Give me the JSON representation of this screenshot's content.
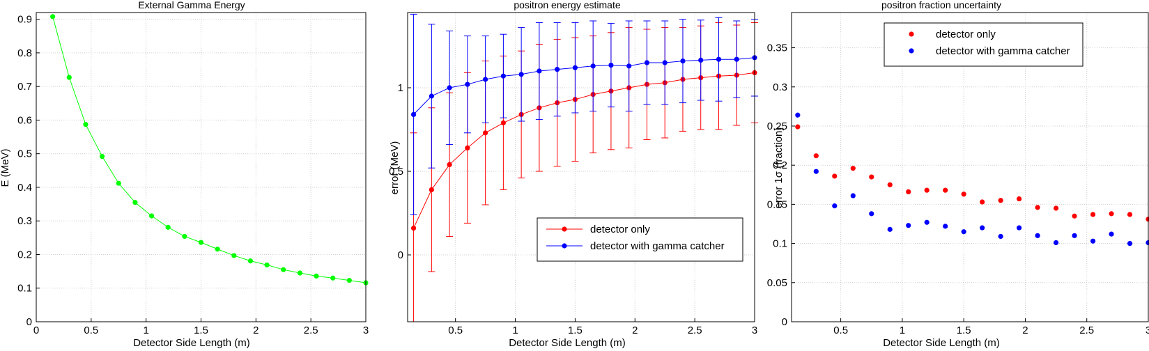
{
  "chart_data": [
    {
      "type": "line",
      "title": "External Gamma Energy",
      "xlabel": "Detector Side Length (m)",
      "ylabel": "E (MeV)",
      "xlim": [
        0,
        3
      ],
      "ylim": [
        0,
        0.92
      ],
      "grid": true,
      "x": [
        0.15,
        0.3,
        0.45,
        0.6,
        0.75,
        0.9,
        1.05,
        1.2,
        1.35,
        1.5,
        1.65,
        1.8,
        1.95,
        2.1,
        2.25,
        2.4,
        2.55,
        2.7,
        2.85,
        3.0
      ],
      "series": [
        {
          "color": "#00ff00",
          "values": [
            0.908,
            0.727,
            0.587,
            0.492,
            0.412,
            0.355,
            0.315,
            0.281,
            0.254,
            0.236,
            0.216,
            0.197,
            0.181,
            0.169,
            0.155,
            0.145,
            0.136,
            0.13,
            0.123,
            0.116
          ]
        }
      ],
      "xticks": [
        "0",
        "0.5",
        "1",
        "1.5",
        "2",
        "2.5",
        "3"
      ],
      "yticks": [
        "0",
        "0.1",
        "0.2",
        "0.3",
        "0.4",
        "0.5",
        "0.6",
        "0.7",
        "0.8",
        "0.9"
      ]
    },
    {
      "type": "line",
      "title": "positron energy estimate",
      "xlabel": "Detector Side Length (m)",
      "ylabel": "error (MeV)",
      "xlim": [
        0.1,
        3.0
      ],
      "ylim": [
        -0.4,
        1.45
      ],
      "grid": true,
      "legend": "bottom-right",
      "x": [
        0.15,
        0.3,
        0.45,
        0.6,
        0.75,
        0.9,
        1.05,
        1.2,
        1.35,
        1.5,
        1.65,
        1.8,
        1.95,
        2.1,
        2.25,
        2.4,
        2.55,
        2.7,
        2.85,
        3.0
      ],
      "series": [
        {
          "name": "detector only",
          "color": "#ff0000",
          "values": [
            0.16,
            0.39,
            0.54,
            0.64,
            0.73,
            0.79,
            0.84,
            0.88,
            0.91,
            0.93,
            0.96,
            0.98,
            1.0,
            1.02,
            1.03,
            1.05,
            1.06,
            1.07,
            1.075,
            1.09
          ],
          "errors": [
            0.57,
            0.49,
            0.43,
            0.45,
            0.43,
            0.4,
            0.38,
            0.38,
            0.38,
            0.37,
            0.35,
            0.35,
            0.36,
            0.33,
            0.33,
            0.31,
            0.31,
            0.32,
            0.3,
            0.3
          ]
        },
        {
          "name": "detector with gamma catcher",
          "color": "#0000ff",
          "values": [
            0.84,
            0.95,
            1.0,
            1.02,
            1.05,
            1.07,
            1.08,
            1.1,
            1.11,
            1.12,
            1.13,
            1.135,
            1.13,
            1.15,
            1.15,
            1.16,
            1.165,
            1.17,
            1.17,
            1.18
          ],
          "errors": [
            0.6,
            0.43,
            0.34,
            0.29,
            0.26,
            0.25,
            0.28,
            0.29,
            0.28,
            0.27,
            0.27,
            0.25,
            0.27,
            0.25,
            0.25,
            0.25,
            0.24,
            0.25,
            0.23,
            0.23
          ]
        }
      ],
      "xticks": [
        "0.5",
        "1",
        "1.5",
        "2",
        "2.5",
        "3"
      ],
      "yticks": [
        "0",
        "0.5",
        "1"
      ]
    },
    {
      "type": "scatter",
      "title": "positron fraction uncertainty",
      "xlabel": "Detector Side Length (m)",
      "ylabel": "error 1σ (fraction)",
      "xlim": [
        0.1,
        3.0
      ],
      "ylim": [
        0,
        0.395
      ],
      "grid": true,
      "legend": "top-right",
      "x": [
        0.15,
        0.3,
        0.45,
        0.6,
        0.75,
        0.9,
        1.05,
        1.2,
        1.35,
        1.5,
        1.65,
        1.8,
        1.95,
        2.1,
        2.25,
        2.4,
        2.55,
        2.7,
        2.85,
        3.0
      ],
      "series": [
        {
          "name": "detector only",
          "color": "#ff0000",
          "values": [
            0.249,
            0.212,
            0.186,
            0.196,
            0.185,
            0.175,
            0.166,
            0.168,
            0.168,
            0.163,
            0.153,
            0.155,
            0.157,
            0.146,
            0.145,
            0.135,
            0.137,
            0.138,
            0.137,
            0.131
          ]
        },
        {
          "name": "detector with gamma catcher",
          "color": "#0000ff",
          "values": [
            0.264,
            0.192,
            0.148,
            0.161,
            0.138,
            0.118,
            0.123,
            0.127,
            0.122,
            0.115,
            0.12,
            0.109,
            0.12,
            0.11,
            0.101,
            0.11,
            0.103,
            0.112,
            0.1,
            0.101
          ]
        }
      ],
      "xticks": [
        "0.5",
        "1",
        "1.5",
        "2",
        "2.5",
        "3"
      ],
      "yticks": [
        "0",
        "0.05",
        "0.1",
        "0.15",
        "0.2",
        "0.25",
        "0.3",
        "0.35"
      ]
    }
  ]
}
